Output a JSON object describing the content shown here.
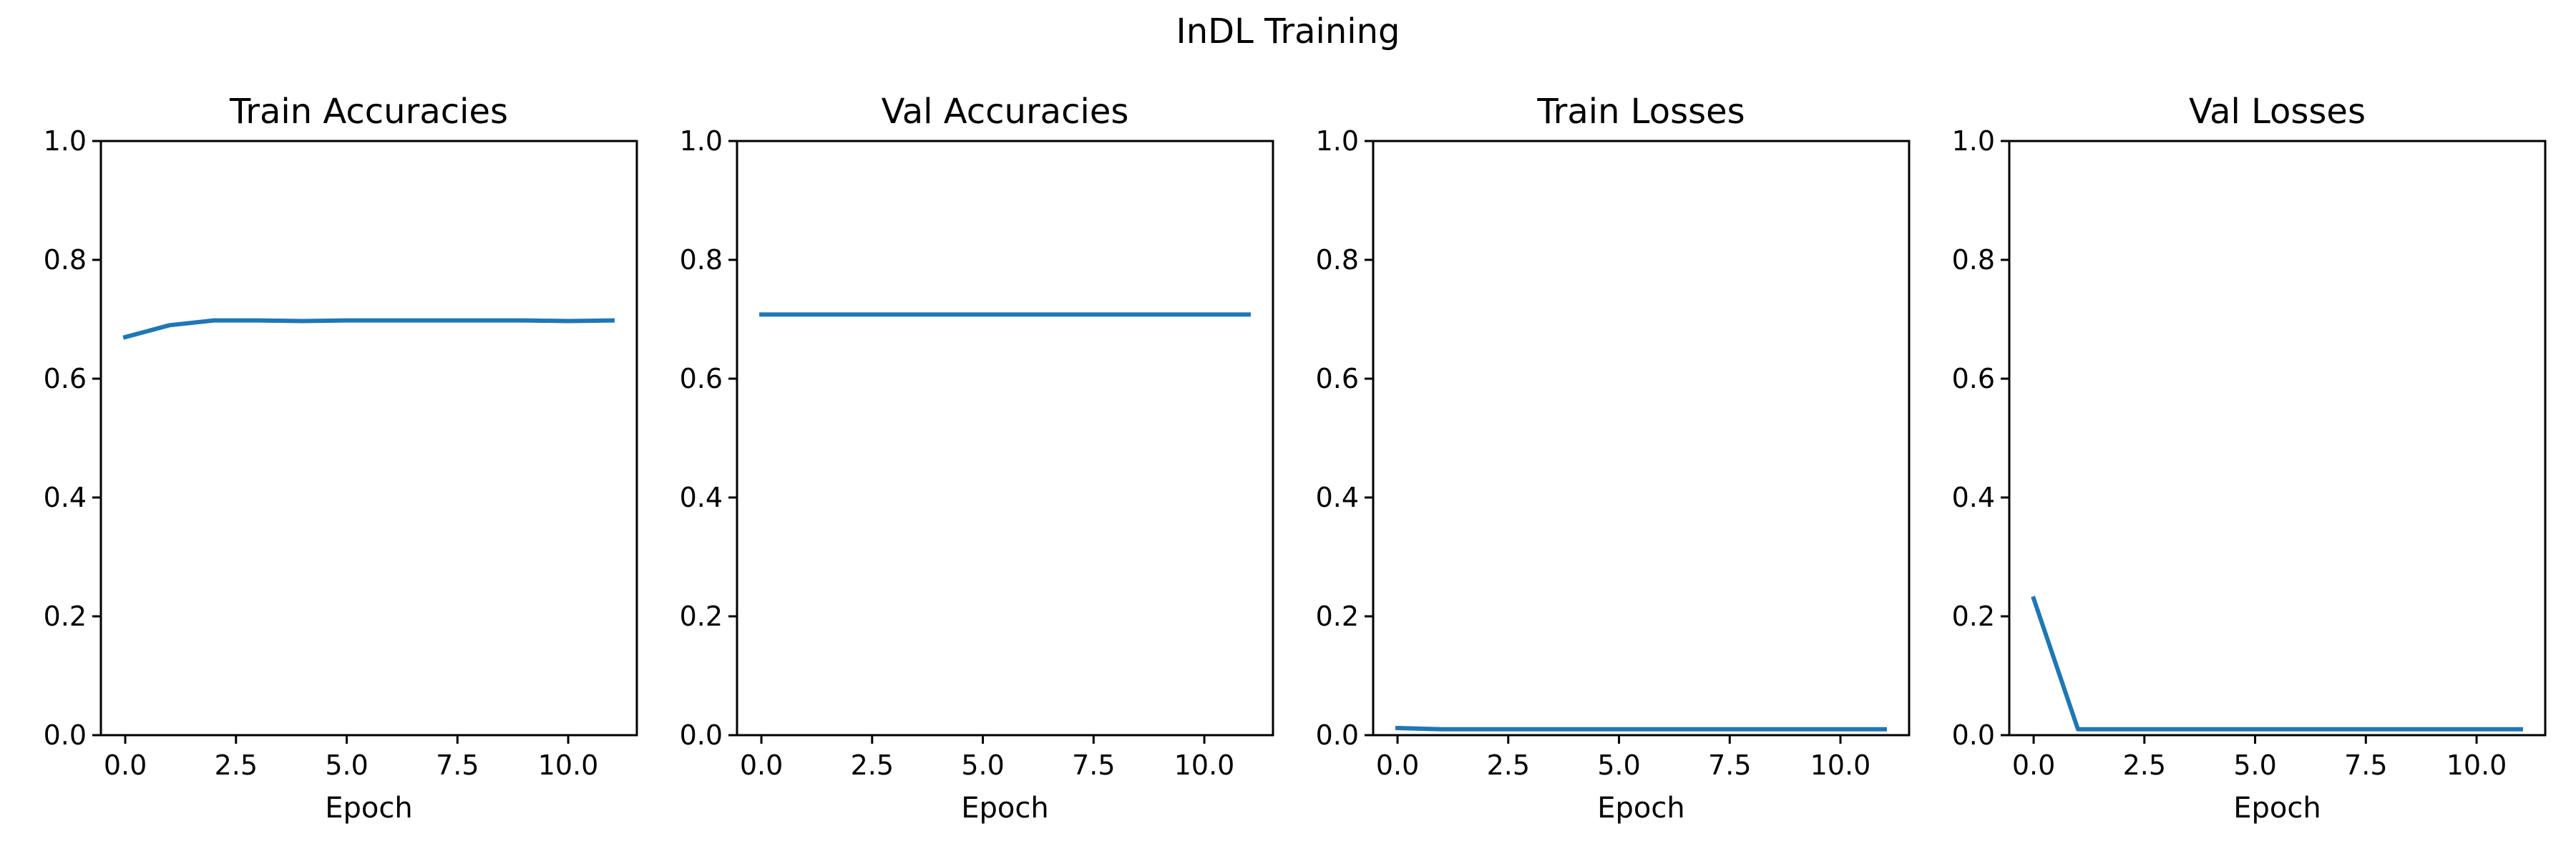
{
  "figure": {
    "title": "InDL Training",
    "line_color": "#1f77b4"
  },
  "chart_data": [
    {
      "type": "line",
      "title": "Train Accuracies",
      "xlabel": "Epoch",
      "ylabel": "",
      "xlim": [
        -0.55,
        11.55
      ],
      "ylim": [
        0,
        1
      ],
      "xticks": [
        0.0,
        2.5,
        5.0,
        7.5,
        10.0
      ],
      "xtick_labels": [
        "0.0",
        "2.5",
        "5.0",
        "7.5",
        "10.0"
      ],
      "yticks": [
        0.0,
        0.2,
        0.4,
        0.6,
        0.8,
        1.0
      ],
      "ytick_labels": [
        "0.0",
        "0.2",
        "0.4",
        "0.6",
        "0.8",
        "1.0"
      ],
      "grid": false,
      "x": [
        0,
        1,
        2,
        3,
        4,
        5,
        6,
        7,
        8,
        9,
        10,
        11
      ],
      "series": [
        {
          "values": [
            0.67,
            0.69,
            0.698,
            0.698,
            0.697,
            0.698,
            0.698,
            0.698,
            0.698,
            0.698,
            0.697,
            0.698
          ]
        }
      ]
    },
    {
      "type": "line",
      "title": "Val Accuracies",
      "xlabel": "Epoch",
      "ylabel": "",
      "xlim": [
        -0.55,
        11.55
      ],
      "ylim": [
        0,
        1
      ],
      "xticks": [
        0.0,
        2.5,
        5.0,
        7.5,
        10.0
      ],
      "xtick_labels": [
        "0.0",
        "2.5",
        "5.0",
        "7.5",
        "10.0"
      ],
      "yticks": [
        0.0,
        0.2,
        0.4,
        0.6,
        0.8,
        1.0
      ],
      "ytick_labels": [
        "0.0",
        "0.2",
        "0.4",
        "0.6",
        "0.8",
        "1.0"
      ],
      "grid": false,
      "x": [
        0,
        1,
        2,
        3,
        4,
        5,
        6,
        7,
        8,
        9,
        10,
        11
      ],
      "series": [
        {
          "values": [
            0.708,
            0.708,
            0.708,
            0.708,
            0.708,
            0.708,
            0.708,
            0.708,
            0.708,
            0.708,
            0.708,
            0.708
          ]
        }
      ]
    },
    {
      "type": "line",
      "title": "Train Losses",
      "xlabel": "Epoch",
      "ylabel": "",
      "xlim": [
        -0.55,
        11.55
      ],
      "ylim": [
        0,
        1
      ],
      "xticks": [
        0.0,
        2.5,
        5.0,
        7.5,
        10.0
      ],
      "xtick_labels": [
        "0.0",
        "2.5",
        "5.0",
        "7.5",
        "10.0"
      ],
      "yticks": [
        0.0,
        0.2,
        0.4,
        0.6,
        0.8,
        1.0
      ],
      "ytick_labels": [
        "0.0",
        "0.2",
        "0.4",
        "0.6",
        "0.8",
        "1.0"
      ],
      "grid": false,
      "x": [
        0,
        1,
        2,
        3,
        4,
        5,
        6,
        7,
        8,
        9,
        10,
        11
      ],
      "series": [
        {
          "values": [
            0.012,
            0.01,
            0.01,
            0.01,
            0.01,
            0.01,
            0.01,
            0.01,
            0.01,
            0.01,
            0.01,
            0.01
          ]
        }
      ]
    },
    {
      "type": "line",
      "title": "Val Losses",
      "xlabel": "Epoch",
      "ylabel": "",
      "xlim": [
        -0.55,
        11.55
      ],
      "ylim": [
        0,
        1
      ],
      "xticks": [
        0.0,
        2.5,
        5.0,
        7.5,
        10.0
      ],
      "xtick_labels": [
        "0.0",
        "2.5",
        "5.0",
        "7.5",
        "10.0"
      ],
      "yticks": [
        0.0,
        0.2,
        0.4,
        0.6,
        0.8,
        1.0
      ],
      "ytick_labels": [
        "0.0",
        "0.2",
        "0.4",
        "0.6",
        "0.8",
        "1.0"
      ],
      "grid": false,
      "x": [
        0,
        1,
        2,
        3,
        4,
        5,
        6,
        7,
        8,
        9,
        10,
        11
      ],
      "series": [
        {
          "values": [
            0.23,
            0.01,
            0.01,
            0.01,
            0.01,
            0.01,
            0.01,
            0.01,
            0.01,
            0.01,
            0.01,
            0.01
          ]
        }
      ]
    }
  ]
}
